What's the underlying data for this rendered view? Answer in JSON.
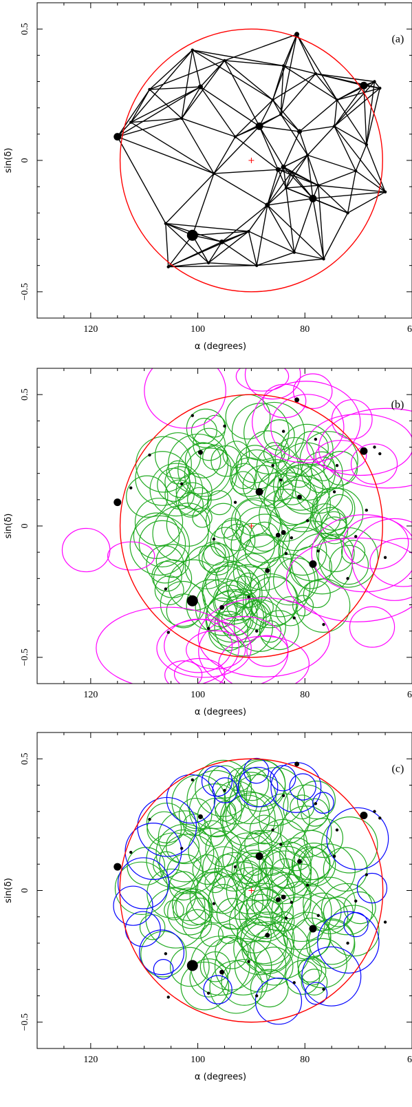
{
  "chart_data": [
    {
      "type": "scatter",
      "panel_label": "(a)",
      "xlabel": "α (degrees)",
      "ylabel": "sin(δ)",
      "xlim": [
        130,
        60
      ],
      "ylim": [
        -0.6,
        0.6
      ],
      "xticks": [
        120,
        100,
        80,
        60
      ],
      "yticks": [
        -0.5,
        0,
        0.5
      ],
      "xtick_labels": [
        "120",
        "100",
        "80",
        "60"
      ],
      "ytick_labels": [
        "−0.5",
        "0",
        "0.5"
      ],
      "boundary_circle": {
        "center": [
          90,
          0
        ],
        "radius_y": 0.5,
        "color": "#ff0000"
      },
      "center_marker": {
        "x": 90,
        "y": 0,
        "color": "#ff0000"
      },
      "overlay": "triangulation"
    },
    {
      "type": "scatter",
      "panel_label": "(b)",
      "xlabel": "α (degrees)",
      "ylabel": "sin(δ)",
      "xlim": [
        130,
        60
      ],
      "ylim": [
        -0.6,
        0.6
      ],
      "xticks": [
        120,
        100,
        80,
        60
      ],
      "yticks": [
        -0.5,
        0,
        0.5
      ],
      "xtick_labels": [
        "120",
        "100",
        "80",
        "60"
      ],
      "ytick_labels": [
        "−0.5",
        "0",
        "0.5"
      ],
      "boundary_circle": {
        "center": [
          90,
          0
        ],
        "radius_y": 0.5,
        "color": "#ff0000"
      },
      "center_marker": {
        "x": 90,
        "y": 0,
        "color": "#ff0000"
      },
      "overlay": "circles",
      "inner_circle_color": "#22aa22",
      "outer_circle_color": "#ff00ff"
    },
    {
      "type": "scatter",
      "panel_label": "(c)",
      "xlabel": "α (degrees)",
      "ylabel": "sin(δ)",
      "xlim": [
        130,
        60
      ],
      "ylim": [
        -0.6,
        0.6
      ],
      "xticks": [
        120,
        100,
        80,
        60
      ],
      "yticks": [
        -0.5,
        0,
        0.5
      ],
      "xtick_labels": [
        "120",
        "100",
        "80",
        "60"
      ],
      "ytick_labels": [
        "−0.5",
        "0",
        "0.5"
      ],
      "boundary_circle": {
        "center": [
          90,
          0
        ],
        "radius_y": 0.5,
        "color": "#ff0000"
      },
      "center_marker": {
        "x": 90,
        "y": 0,
        "color": "#ff0000"
      },
      "overlay": "circles",
      "inner_circle_color": "#22aa22",
      "outer_circle_color": "#0000ff"
    }
  ],
  "points": [
    {
      "x": 101.0,
      "y": -0.285,
      "size": 3
    },
    {
      "x": 115.0,
      "y": 0.09,
      "size": 2
    },
    {
      "x": 88.5,
      "y": 0.13,
      "size": 2
    },
    {
      "x": 78.5,
      "y": -0.145,
      "size": 2
    },
    {
      "x": 69.0,
      "y": 0.285,
      "size": 2
    },
    {
      "x": 81.5,
      "y": 0.48,
      "size": 1
    },
    {
      "x": 99.5,
      "y": 0.28,
      "size": 1
    },
    {
      "x": 95.5,
      "y": -0.31,
      "size": 1
    },
    {
      "x": 87.0,
      "y": -0.17,
      "size": 1
    },
    {
      "x": 84.0,
      "y": -0.025,
      "size": 1
    },
    {
      "x": 85.0,
      "y": -0.035,
      "size": 1
    },
    {
      "x": 81.0,
      "y": 0.11,
      "size": 1
    },
    {
      "x": 82.5,
      "y": -0.045,
      "size": 0
    },
    {
      "x": 101.0,
      "y": 0.42,
      "size": 0
    },
    {
      "x": 95.0,
      "y": 0.38,
      "size": 0
    },
    {
      "x": 84.0,
      "y": 0.36,
      "size": 0
    },
    {
      "x": 105.5,
      "y": -0.405,
      "size": 0
    },
    {
      "x": 82.0,
      "y": -0.35,
      "size": 0
    },
    {
      "x": 76.5,
      "y": -0.375,
      "size": 0
    },
    {
      "x": 84.5,
      "y": 0.175,
      "size": 0
    },
    {
      "x": 112.5,
      "y": 0.145,
      "size": 0
    },
    {
      "x": 74.5,
      "y": 0.13,
      "size": 0
    },
    {
      "x": 83.5,
      "y": -0.105,
      "size": 0
    },
    {
      "x": 67.0,
      "y": 0.3,
      "size": 0
    },
    {
      "x": 66.0,
      "y": 0.275,
      "size": 0
    },
    {
      "x": 78.0,
      "y": 0.33,
      "size": 0
    },
    {
      "x": 77.5,
      "y": -0.095,
      "size": 0
    },
    {
      "x": 106.0,
      "y": -0.24,
      "size": 0
    },
    {
      "x": 90.5,
      "y": -0.27,
      "size": 0
    },
    {
      "x": 86.0,
      "y": 0.23,
      "size": 0
    },
    {
      "x": 72.0,
      "y": -0.2,
      "size": 0
    },
    {
      "x": 79.5,
      "y": 0.02,
      "size": 0
    },
    {
      "x": 68.5,
      "y": 0.06,
      "size": 0
    },
    {
      "x": 97.0,
      "y": -0.05,
      "size": 0
    },
    {
      "x": 93.0,
      "y": 0.09,
      "size": 0
    },
    {
      "x": 109.0,
      "y": 0.27,
      "size": 0
    },
    {
      "x": 103.0,
      "y": 0.16,
      "size": 0
    },
    {
      "x": 74.0,
      "y": 0.23,
      "size": 0
    },
    {
      "x": 70.5,
      "y": -0.04,
      "size": 0
    },
    {
      "x": 89.0,
      "y": -0.4,
      "size": 0
    },
    {
      "x": 98.0,
      "y": -0.39,
      "size": 0
    },
    {
      "x": 65.0,
      "y": -0.12,
      "size": 0
    }
  ]
}
